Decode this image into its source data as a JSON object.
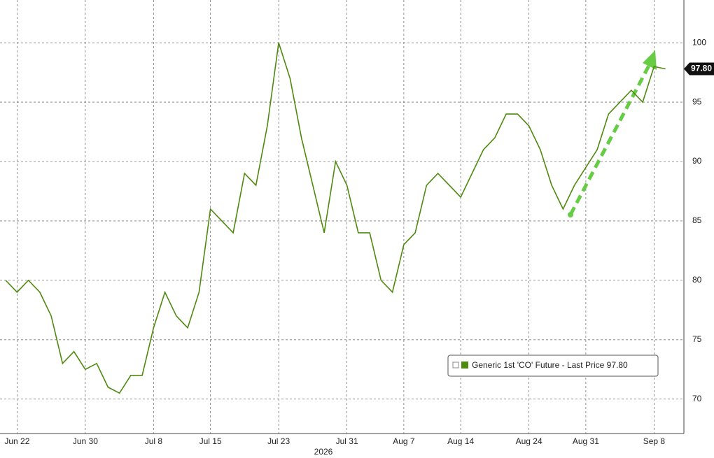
{
  "chart_data": {
    "type": "line",
    "x_label": "2026",
    "categories": [
      null,
      "Jun 22",
      null,
      null,
      null,
      null,
      null,
      "Jun 30",
      null,
      null,
      null,
      null,
      null,
      "Jul 8",
      null,
      null,
      null,
      null,
      "Jul 15",
      null,
      null,
      null,
      null,
      null,
      "Jul 23",
      null,
      null,
      null,
      null,
      null,
      "Jul 31",
      null,
      null,
      null,
      null,
      "Aug 7",
      null,
      null,
      null,
      null,
      "Aug 14",
      null,
      null,
      null,
      null,
      null,
      "Aug 24",
      null,
      null,
      null,
      null,
      "Aug 31",
      null,
      null,
      null,
      null,
      null,
      "Sep 8",
      null
    ],
    "series": [
      {
        "name": "Generic 1st 'CO' Future - Last Price 97.80",
        "color": "#4e8a0e",
        "values": [
          80,
          79,
          80,
          79,
          77,
          73,
          74,
          72.5,
          73,
          71,
          70.5,
          72,
          72,
          76,
          79,
          77,
          76,
          79,
          86,
          85,
          84,
          89,
          88,
          93,
          100,
          97,
          92,
          88,
          84,
          90,
          88,
          84,
          84,
          80,
          79,
          83,
          84,
          88,
          89,
          88,
          87,
          89,
          91,
          92,
          94,
          94,
          93,
          91,
          88,
          86,
          88,
          89.5,
          91,
          94,
          95,
          96,
          95,
          98,
          97.8
        ]
      }
    ],
    "last_price_label": "97.80",
    "ylim": [
      67.1,
      103.6
    ],
    "yticks": [
      70,
      75,
      80,
      85,
      90,
      95,
      100
    ],
    "grid": true
  }
}
